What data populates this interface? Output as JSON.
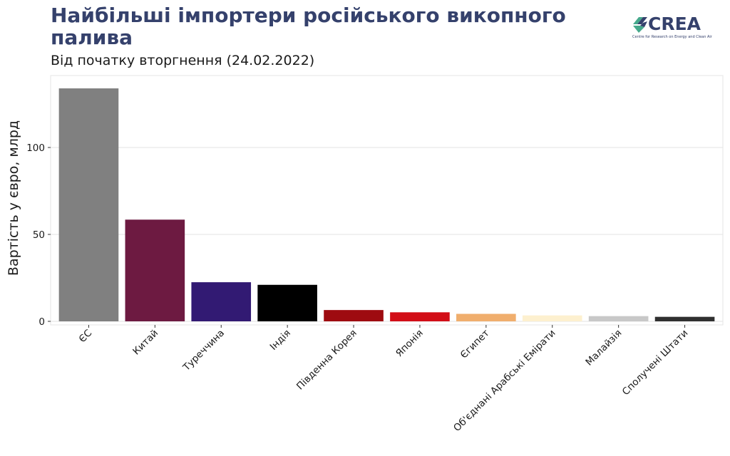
{
  "chart_data": {
    "type": "bar",
    "title": "Найбільші імпортери російського викопного\n палива",
    "subtitle": "Від початку вторгнення (24.02.2022)",
    "ylabel": "Вартість у євро, млрд",
    "xlabel": "",
    "ylim": [
      0,
      140
    ],
    "yticks": [
      0,
      50,
      100
    ],
    "grid": true,
    "categories": [
      "ЄС",
      "Китай",
      "Туреччина",
      "Індія",
      "Південна Корея",
      "Японія",
      "Єгипет",
      "Об'єднані Арабські Емірати",
      "Малайзія",
      "Сполучені Штати"
    ],
    "values": [
      134,
      58.5,
      22.5,
      21,
      6.5,
      5.2,
      4.3,
      3.4,
      3.0,
      2.6
    ],
    "colors": [
      "#808080",
      "#6d1a41",
      "#321a73",
      "#000000",
      "#9e0b10",
      "#d20e17",
      "#f0ae6d",
      "#fdf0cf",
      "#c8c8c8",
      "#303030"
    ]
  },
  "logo": {
    "text": "CREA",
    "tagline": "Centre for Research on Energy and Clean Air",
    "color": "#35416c",
    "accent": "#46a98c"
  }
}
